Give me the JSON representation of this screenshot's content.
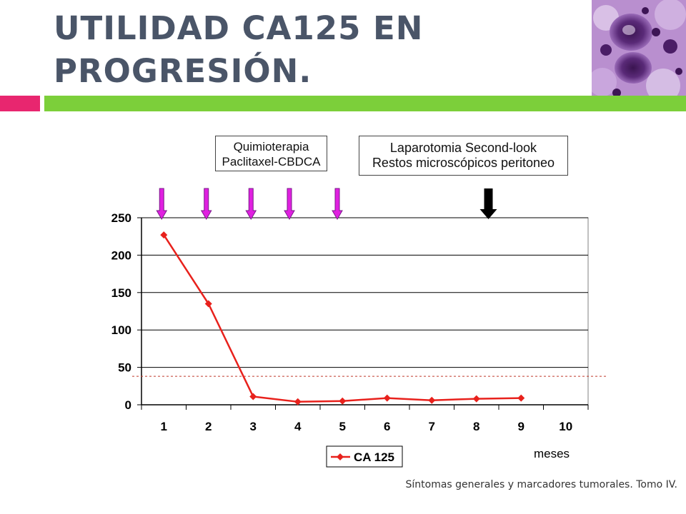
{
  "slide": {
    "title_line1": "UTILIDAD CA125 EN",
    "title_line2": "PROGRESIÓN.",
    "footer": "Síntomas generales y marcadores tumorales. Tomo IV.",
    "accent_colors": {
      "pink": "#e8266f",
      "green": "#7ccf3a",
      "title": "#4a5568"
    },
    "corner_image": "histology-micrograph"
  },
  "annotations": {
    "chemo_line1": "Quimioterapia",
    "chemo_line2": "Paclitaxel-CBDCA",
    "laparotomy_line1": "Laparotomia Second-look",
    "laparotomy_line2": "Restos microscópicos peritoneo"
  },
  "chart_data": {
    "type": "line",
    "categories": [
      "1",
      "2",
      "3",
      "4",
      "5",
      "6",
      "7",
      "8",
      "9",
      "10"
    ],
    "series": [
      {
        "name": "CA 125",
        "color": "#e8211c",
        "values": [
          227,
          135,
          11,
          4,
          5,
          9,
          6,
          8,
          9,
          null
        ]
      }
    ],
    "ylim": [
      0,
      250
    ],
    "yticks": [
      0,
      50,
      100,
      150,
      200,
      250
    ],
    "xlabel": "meses",
    "ylabel": "",
    "grid": true,
    "legend": "bottom",
    "reference_line": {
      "value": 38,
      "color": "#c0392b",
      "style": "dashed"
    },
    "chemo_arrows_at_month": [
      1,
      2,
      3,
      4,
      5
    ],
    "chemo_arrow_color": "#e020e0",
    "surgery_arrow_at_month": 8.3,
    "surgery_arrow_color": "#000000"
  }
}
